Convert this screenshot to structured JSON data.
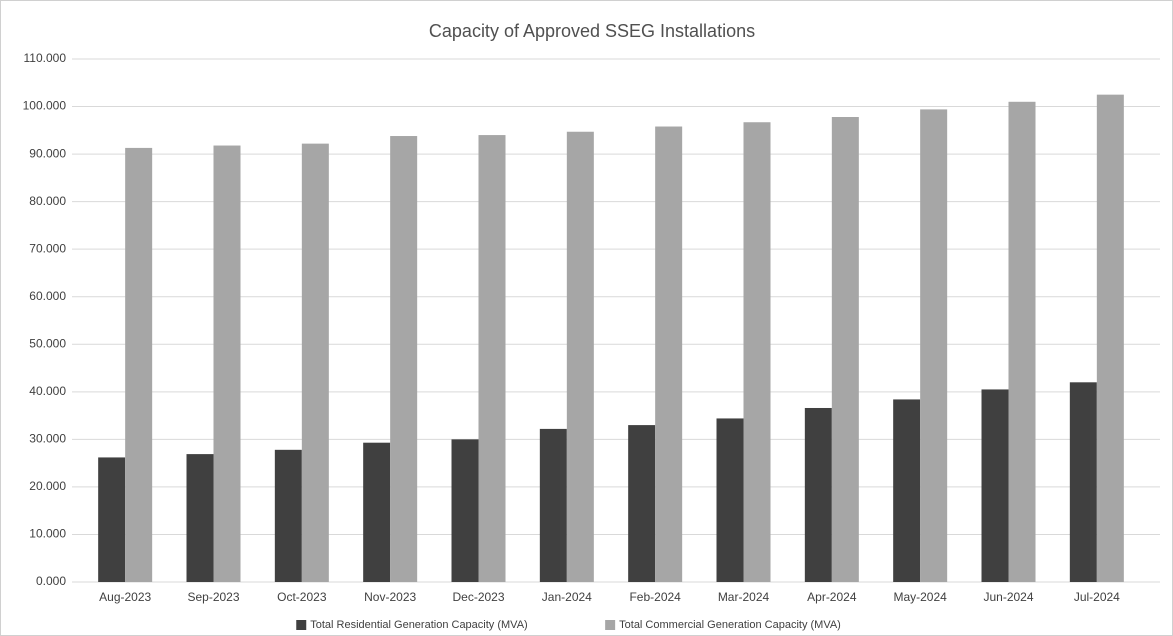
{
  "chart_data": {
    "type": "bar",
    "title": "Capacity of Approved SSEG Installations",
    "categories": [
      "Aug-2023",
      "Sep-2023",
      "Oct-2023",
      "Nov-2023",
      "Dec-2023",
      "Jan-2024",
      "Feb-2024",
      "Mar-2024",
      "Apr-2024",
      "May-2024",
      "Jun-2024",
      "Jul-2024"
    ],
    "series": [
      {
        "name": "Total Residential Generation Capacity (MVA)",
        "color": "#404040",
        "values": [
          26.2,
          26.9,
          27.8,
          29.3,
          30.0,
          32.2,
          33.0,
          34.4,
          36.6,
          38.4,
          40.5,
          42.0
        ]
      },
      {
        "name": "Total Commercial Generation Capacity (MVA)",
        "color": "#a6a6a6",
        "values": [
          91.3,
          91.8,
          92.2,
          93.8,
          94.0,
          94.7,
          95.8,
          96.7,
          97.8,
          99.4,
          101.0,
          102.5
        ]
      }
    ],
    "ylim": [
      0,
      110
    ],
    "yticks": [
      {
        "value": 0,
        "label": "0.000"
      },
      {
        "value": 10,
        "label": "10.000"
      },
      {
        "value": 20,
        "label": "20.000"
      },
      {
        "value": 30,
        "label": "30.000"
      },
      {
        "value": 40,
        "label": "40.000"
      },
      {
        "value": 50,
        "label": "50.000"
      },
      {
        "value": 60,
        "label": "60.000"
      },
      {
        "value": 70,
        "label": "70.000"
      },
      {
        "value": 80,
        "label": "80.000"
      },
      {
        "value": 90,
        "label": "90.000"
      },
      {
        "value": 100,
        "label": "100.000"
      },
      {
        "value": 110,
        "label": "110.000"
      }
    ],
    "grid": true,
    "legend": "bottom"
  }
}
